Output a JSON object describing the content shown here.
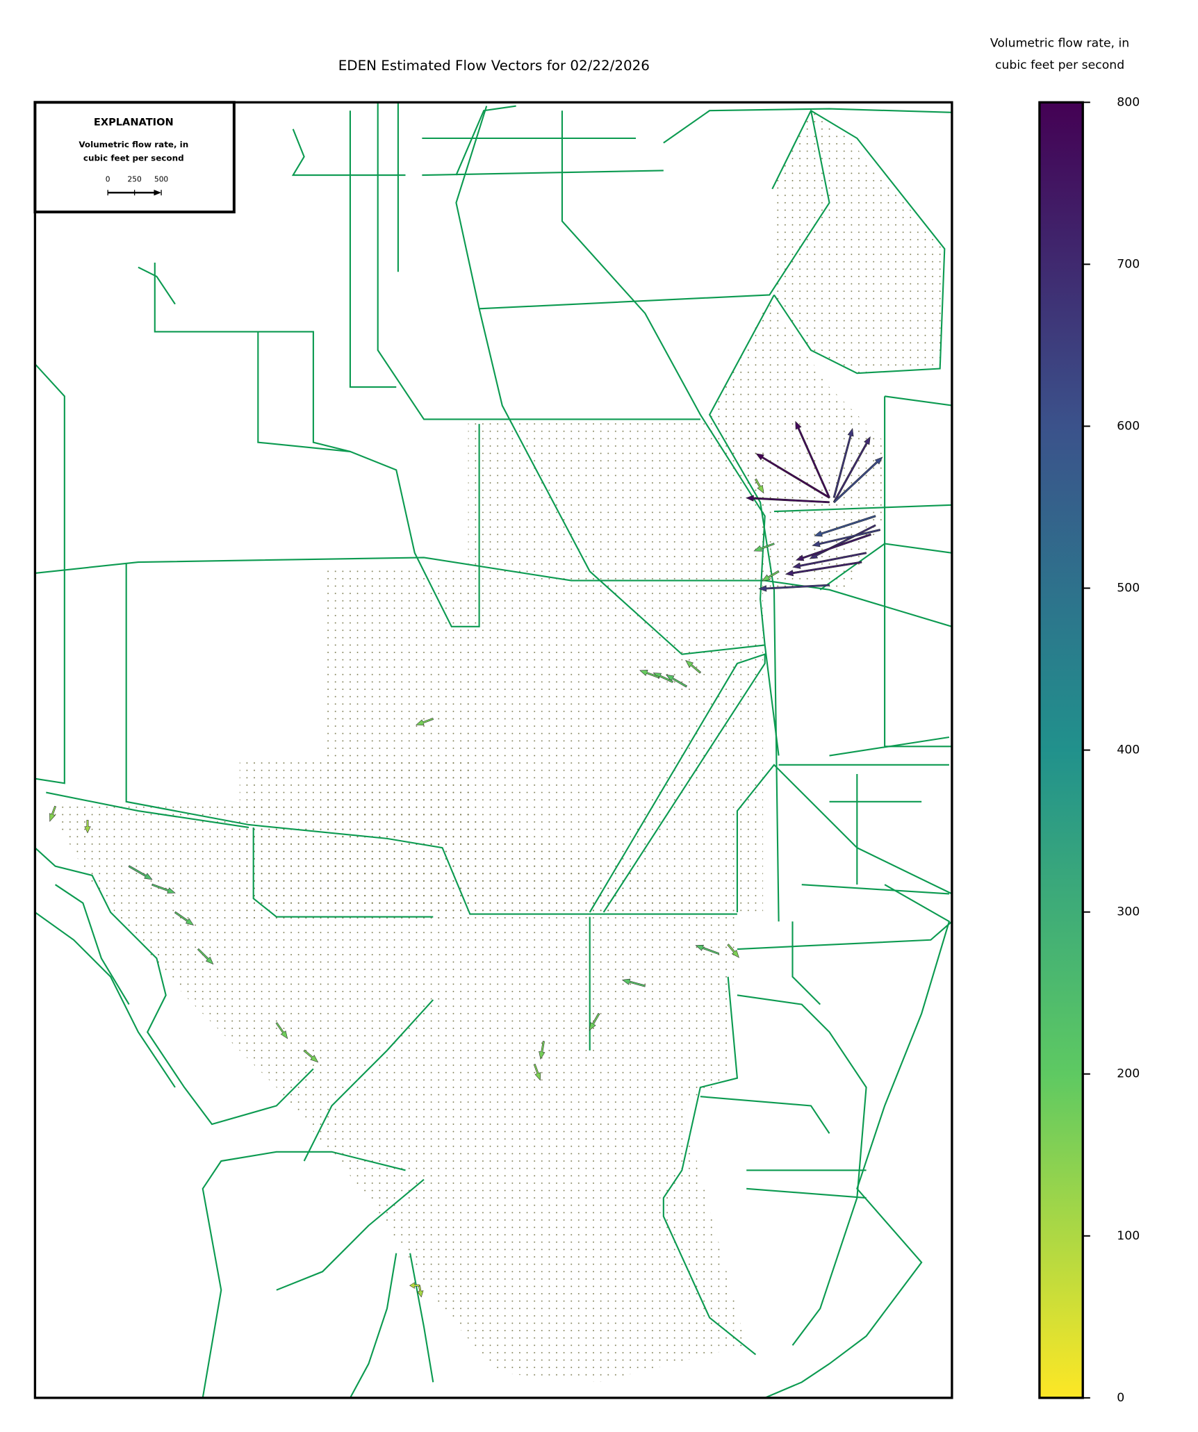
{
  "chart_data": {
    "type": "quiver",
    "title": "EDEN Estimated Flow Vectors for 02/22/2026",
    "colorbar": {
      "label": [
        "Volumetric flow rate, in",
        "cubic feet per second"
      ],
      "clim": [
        0,
        800
      ],
      "ticks": [
        0,
        100,
        200,
        300,
        400,
        500,
        600,
        700,
        800
      ],
      "cmap": "viridis_r"
    },
    "explanation": {
      "title": "EXPLANATION",
      "label": [
        "Volumetric flow rate, in",
        "cubic feet per second"
      ],
      "key_ticks": [
        0,
        250,
        500
      ]
    },
    "vectors": {
      "values": [
        800,
        780,
        670,
        700,
        620,
        780,
        690,
        740,
        700,
        650,
        600,
        720,
        660,
        220,
        200,
        190,
        180,
        250,
        230,
        210,
        200,
        180,
        170,
        160,
        230,
        220,
        180,
        170,
        160,
        150,
        200,
        180,
        170,
        150,
        120,
        110,
        90
      ],
      "directions": [
        149,
        114,
        75,
        61,
        43,
        177,
        207,
        199,
        191,
        193,
        198,
        189,
        183,
        150,
        155,
        160,
        140,
        -30,
        -20,
        -35,
        -45,
        -55,
        -40,
        -50,
        160,
        165,
        -120,
        -100,
        -70,
        -60,
        200,
        210,
        200,
        -110,
        -90,
        -80,
        180
      ]
    }
  }
}
